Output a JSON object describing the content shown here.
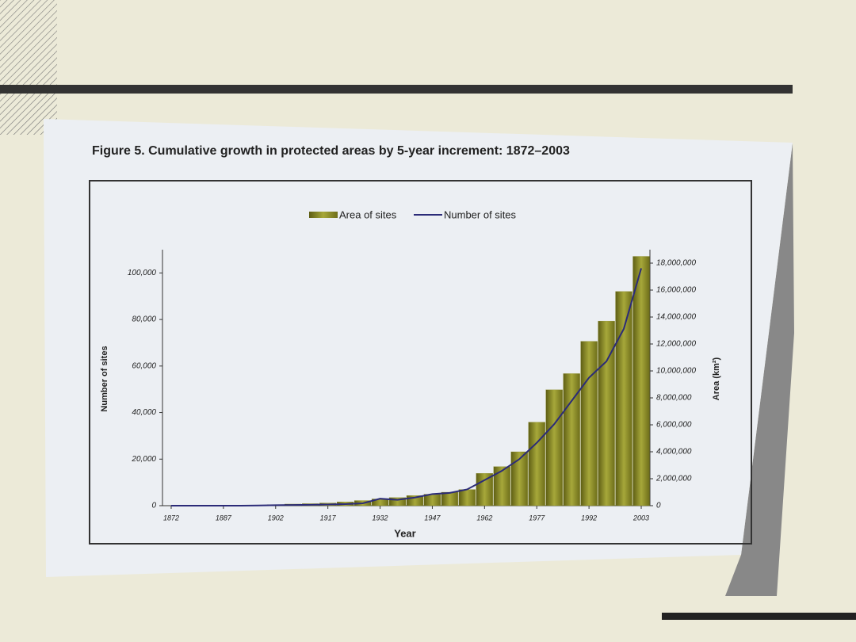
{
  "chart_data": {
    "type": "bar_line",
    "title": "Figure 5. Cumulative growth in protected areas by 5-year increment: 1872–2003",
    "xlabel": "Year",
    "ylabel": "Number of sites",
    "y2label": "Area (km²)",
    "categories": [
      "1872",
      null,
      null,
      "1887",
      null,
      null,
      "1902",
      null,
      null,
      "1917",
      null,
      null,
      "1932",
      null,
      null,
      "1947",
      null,
      null,
      "1962",
      null,
      null,
      "1977",
      null,
      null,
      "1992",
      null,
      null,
      "2003"
    ],
    "series": [
      {
        "name": "Area of sites",
        "type": "bar",
        "axis": "y2",
        "color": "#8a8a26",
        "values": [
          0,
          0,
          0,
          0,
          0,
          0,
          80000,
          120000,
          150000,
          200000,
          280000,
          380000,
          500000,
          600000,
          750000,
          850000,
          1000000,
          1200000,
          2400000,
          2900000,
          4000000,
          6200000,
          8600000,
          9800000,
          12200000,
          13700000,
          15900000,
          18500000
        ]
      },
      {
        "name": "Number of sites",
        "type": "line",
        "axis": "y",
        "color": "#2b2b78",
        "values": [
          0,
          0,
          0,
          0,
          0,
          100,
          200,
          300,
          400,
          500,
          700,
          1000,
          3000,
          2500,
          3500,
          5000,
          5500,
          7000,
          11000,
          15000,
          20000,
          27000,
          35000,
          45000,
          55000,
          62000,
          76000,
          102000
        ]
      }
    ],
    "ylim": [
      0,
      110000
    ],
    "yticks": [
      0,
      {
        "value": 20000,
        "label": "20,000"
      },
      {
        "value": 40000,
        "label": "40,000"
      },
      {
        "value": 60000,
        "label": "60,000"
      },
      {
        "value": 80000,
        "label": "80,000"
      },
      {
        "value": 100000,
        "label": "100,000"
      }
    ],
    "y2lim": [
      0,
      19000000
    ],
    "y2ticks": [
      0,
      {
        "value": 2000000,
        "label": "2,000,000"
      },
      {
        "value": 4000000,
        "label": "4,000,000"
      },
      {
        "value": 6000000,
        "label": "6,000,000"
      },
      {
        "value": 8000000,
        "label": "8,000,000"
      },
      {
        "value": 10000000,
        "label": "10,000,000"
      },
      {
        "value": 12000000,
        "label": "12,000,000"
      },
      {
        "value": 14000000,
        "label": "14,000,000"
      },
      {
        "value": 16000000,
        "label": "16,000,000"
      },
      {
        "value": 18000000,
        "label": "18,000,000"
      }
    ],
    "legend": "top"
  }
}
